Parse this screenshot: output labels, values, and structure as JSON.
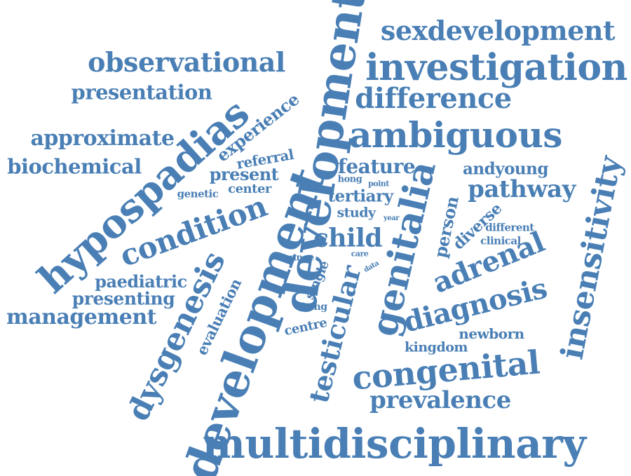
{
  "word_color": "#4a7fb5",
  "background_color": "#ffffff",
  "words": [
    {
      "text": "multidisciplinary"
    },
    {
      "text": "development"
    },
    {
      "text": "development"
    },
    {
      "text": "genitalia"
    },
    {
      "text": "hypospadias"
    },
    {
      "text": "ambiguous"
    },
    {
      "text": "investigation"
    },
    {
      "text": "insensitivity"
    },
    {
      "text": "condition"
    },
    {
      "text": "dysgenesis"
    },
    {
      "text": "congenital"
    },
    {
      "text": "diagnosis"
    },
    {
      "text": "adrenal"
    },
    {
      "text": "observational"
    },
    {
      "text": "sexdevelopment"
    },
    {
      "text": "difference"
    },
    {
      "text": "testicular"
    },
    {
      "text": "child"
    },
    {
      "text": "prevalence"
    },
    {
      "text": "pathway"
    },
    {
      "text": "management"
    },
    {
      "text": "presentation"
    },
    {
      "text": "approximate"
    },
    {
      "text": "biochemical"
    },
    {
      "text": "feature"
    },
    {
      "text": "presenting"
    },
    {
      "text": "paediatric"
    },
    {
      "text": "experience"
    },
    {
      "text": "present"
    },
    {
      "text": "andyoung"
    },
    {
      "text": "person"
    },
    {
      "text": "tertiary"
    },
    {
      "text": "diverse"
    },
    {
      "text": "evaluation"
    },
    {
      "text": "study"
    },
    {
      "text": "newborn"
    },
    {
      "text": "kingdom"
    },
    {
      "text": "referral"
    },
    {
      "text": "center"
    },
    {
      "text": "centre"
    },
    {
      "text": "single"
    },
    {
      "text": "genetic"
    },
    {
      "text": "different"
    },
    {
      "text": "clinical"
    },
    {
      "text": "kong"
    },
    {
      "text": "hong"
    },
    {
      "text": "point"
    },
    {
      "text": "range"
    },
    {
      "text": "year"
    },
    {
      "text": "care"
    },
    {
      "text": "data"
    }
  ]
}
